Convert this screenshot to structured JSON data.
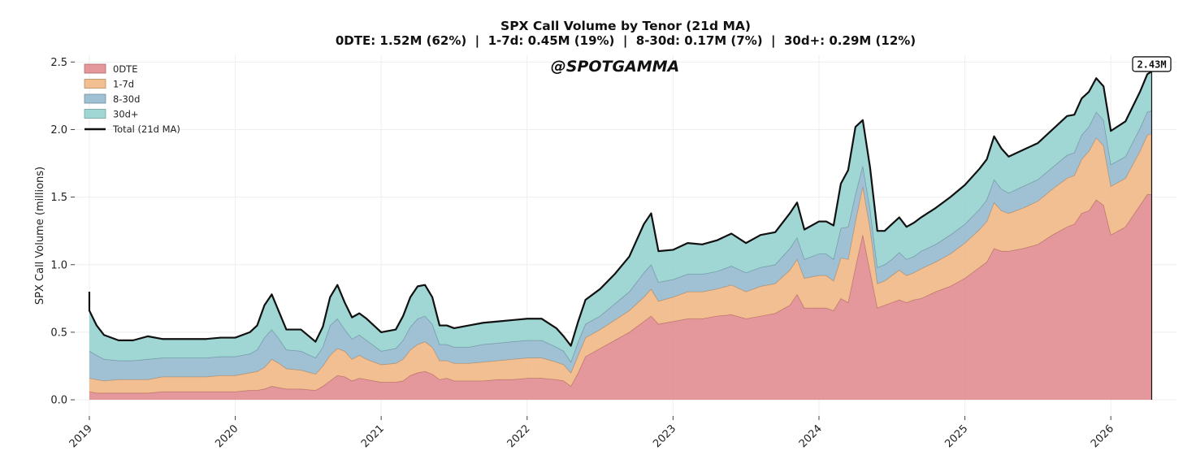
{
  "chart_data": {
    "type": "area",
    "stacked": true,
    "title": "SPX Call Volume by Tenor (21d MA)",
    "subtitle": "0DTE: 1.52M (62%)  |  1-7d: 0.45M (19%)  |  8-30d: 0.17M (7%)  |  30d+: 0.29M (12%)",
    "watermark": "@SPOTGAMMA",
    "ylabel": "SPX Call Volume (millions)",
    "xlabel": "",
    "ylim": [
      -0.12,
      2.55
    ],
    "xlim": [
      2018.9,
      2026.45
    ],
    "yticks": [
      0.0,
      0.5,
      1.0,
      1.5,
      2.0,
      2.5
    ],
    "ytick_labels": [
      "0.0",
      "0.5",
      "1.0",
      "1.5",
      "2.0",
      "2.5"
    ],
    "xticks": [
      2019,
      2020,
      2021,
      2022,
      2023,
      2024,
      2025,
      2026
    ],
    "xtick_labels": [
      "2019",
      "2020",
      "2021",
      "2022",
      "2023",
      "2024",
      "2025",
      "2026"
    ],
    "grid": true,
    "legend_position": "top-left",
    "legend": [
      "0DTE",
      "1-7d",
      "8-30d",
      "30d+",
      "Total (21d MA)"
    ],
    "last_value_label": "2.43M",
    "x": [
      2019.0,
      2019.05,
      2019.1,
      2019.2,
      2019.3,
      2019.4,
      2019.5,
      2019.6,
      2019.7,
      2019.8,
      2019.9,
      2020.0,
      2020.1,
      2020.15,
      2020.2,
      2020.25,
      2020.3,
      2020.35,
      2020.45,
      2020.55,
      2020.6,
      2020.65,
      2020.7,
      2020.75,
      2020.8,
      2020.85,
      2020.9,
      2021.0,
      2021.1,
      2021.15,
      2021.2,
      2021.25,
      2021.3,
      2021.35,
      2021.4,
      2021.45,
      2021.5,
      2021.6,
      2021.7,
      2021.8,
      2021.9,
      2022.0,
      2022.1,
      2022.2,
      2022.25,
      2022.3,
      2022.35,
      2022.4,
      2022.5,
      2022.6,
      2022.7,
      2022.8,
      2022.85,
      2022.9,
      2023.0,
      2023.1,
      2023.2,
      2023.3,
      2023.4,
      2023.5,
      2023.6,
      2023.7,
      2023.8,
      2023.85,
      2023.9,
      2024.0,
      2024.05,
      2024.1,
      2024.15,
      2024.2,
      2024.25,
      2024.3,
      2024.35,
      2024.4,
      2024.45,
      2024.5,
      2024.55,
      2024.6,
      2024.65,
      2024.7,
      2024.8,
      2024.9,
      2025.0,
      2025.1,
      2025.15,
      2025.2,
      2025.25,
      2025.3,
      2025.4,
      2025.5,
      2025.6,
      2025.7,
      2025.75,
      2025.8,
      2025.85,
      2025.9,
      2025.95,
      2026.0,
      2026.1,
      2026.2,
      2026.25,
      2026.28
    ],
    "series": [
      {
        "name": "0DTE",
        "color": "#e0868a",
        "values": [
          0.06,
          0.05,
          0.05,
          0.05,
          0.05,
          0.05,
          0.06,
          0.06,
          0.06,
          0.06,
          0.06,
          0.06,
          0.07,
          0.07,
          0.08,
          0.1,
          0.09,
          0.08,
          0.08,
          0.07,
          0.1,
          0.14,
          0.18,
          0.17,
          0.14,
          0.16,
          0.15,
          0.13,
          0.13,
          0.14,
          0.18,
          0.2,
          0.21,
          0.19,
          0.15,
          0.16,
          0.14,
          0.14,
          0.14,
          0.15,
          0.15,
          0.16,
          0.16,
          0.15,
          0.14,
          0.1,
          0.2,
          0.32,
          0.38,
          0.44,
          0.5,
          0.58,
          0.62,
          0.56,
          0.58,
          0.6,
          0.6,
          0.62,
          0.63,
          0.6,
          0.62,
          0.64,
          0.7,
          0.78,
          0.68,
          0.68,
          0.68,
          0.66,
          0.75,
          0.72,
          0.98,
          1.22,
          0.95,
          0.68,
          0.7,
          0.72,
          0.74,
          0.72,
          0.74,
          0.75,
          0.8,
          0.84,
          0.9,
          0.98,
          1.02,
          1.12,
          1.1,
          1.1,
          1.12,
          1.15,
          1.22,
          1.28,
          1.3,
          1.38,
          1.4,
          1.48,
          1.44,
          1.22,
          1.28,
          1.44,
          1.52,
          1.52
        ]
      },
      {
        "name": "1-7d",
        "color": "#efb47f",
        "values": [
          0.1,
          0.1,
          0.09,
          0.1,
          0.1,
          0.1,
          0.11,
          0.11,
          0.11,
          0.11,
          0.12,
          0.12,
          0.13,
          0.14,
          0.16,
          0.2,
          0.18,
          0.15,
          0.14,
          0.12,
          0.15,
          0.19,
          0.2,
          0.19,
          0.16,
          0.17,
          0.15,
          0.13,
          0.14,
          0.16,
          0.19,
          0.21,
          0.22,
          0.2,
          0.14,
          0.13,
          0.13,
          0.13,
          0.14,
          0.14,
          0.15,
          0.15,
          0.15,
          0.13,
          0.12,
          0.1,
          0.13,
          0.14,
          0.14,
          0.15,
          0.16,
          0.18,
          0.2,
          0.17,
          0.18,
          0.2,
          0.2,
          0.2,
          0.22,
          0.2,
          0.22,
          0.22,
          0.26,
          0.26,
          0.22,
          0.24,
          0.24,
          0.22,
          0.3,
          0.32,
          0.34,
          0.36,
          0.32,
          0.18,
          0.18,
          0.2,
          0.22,
          0.2,
          0.2,
          0.22,
          0.22,
          0.24,
          0.26,
          0.28,
          0.3,
          0.34,
          0.3,
          0.28,
          0.3,
          0.32,
          0.34,
          0.36,
          0.36,
          0.4,
          0.44,
          0.46,
          0.44,
          0.36,
          0.36,
          0.4,
          0.44,
          0.45
        ]
      },
      {
        "name": "8-30d",
        "color": "#8fb6cc",
        "values": [
          0.2,
          0.18,
          0.16,
          0.14,
          0.14,
          0.15,
          0.14,
          0.14,
          0.14,
          0.14,
          0.14,
          0.14,
          0.14,
          0.16,
          0.22,
          0.22,
          0.18,
          0.14,
          0.14,
          0.12,
          0.14,
          0.22,
          0.22,
          0.16,
          0.15,
          0.15,
          0.14,
          0.1,
          0.11,
          0.14,
          0.17,
          0.19,
          0.19,
          0.17,
          0.12,
          0.12,
          0.12,
          0.12,
          0.13,
          0.13,
          0.13,
          0.13,
          0.13,
          0.11,
          0.1,
          0.08,
          0.1,
          0.1,
          0.1,
          0.12,
          0.14,
          0.18,
          0.18,
          0.14,
          0.13,
          0.13,
          0.13,
          0.13,
          0.14,
          0.14,
          0.14,
          0.14,
          0.16,
          0.16,
          0.14,
          0.16,
          0.16,
          0.16,
          0.22,
          0.24,
          0.2,
          0.15,
          0.14,
          0.12,
          0.12,
          0.12,
          0.13,
          0.12,
          0.12,
          0.13,
          0.13,
          0.14,
          0.14,
          0.15,
          0.16,
          0.17,
          0.16,
          0.15,
          0.16,
          0.16,
          0.16,
          0.17,
          0.17,
          0.18,
          0.18,
          0.19,
          0.19,
          0.16,
          0.16,
          0.17,
          0.17,
          0.17
        ]
      },
      {
        "name": "30d+",
        "color": "#8fd0cc",
        "values": [
          0.3,
          0.22,
          0.18,
          0.15,
          0.15,
          0.17,
          0.14,
          0.14,
          0.14,
          0.14,
          0.14,
          0.14,
          0.16,
          0.18,
          0.24,
          0.26,
          0.2,
          0.15,
          0.16,
          0.12,
          0.15,
          0.21,
          0.25,
          0.2,
          0.16,
          0.16,
          0.16,
          0.14,
          0.14,
          0.18,
          0.22,
          0.24,
          0.23,
          0.2,
          0.14,
          0.14,
          0.14,
          0.16,
          0.16,
          0.16,
          0.16,
          0.16,
          0.16,
          0.14,
          0.11,
          0.12,
          0.15,
          0.18,
          0.2,
          0.22,
          0.26,
          0.36,
          0.38,
          0.23,
          0.22,
          0.23,
          0.22,
          0.23,
          0.24,
          0.22,
          0.24,
          0.24,
          0.26,
          0.26,
          0.22,
          0.24,
          0.24,
          0.25,
          0.33,
          0.42,
          0.5,
          0.34,
          0.31,
          0.27,
          0.25,
          0.26,
          0.26,
          0.24,
          0.25,
          0.25,
          0.27,
          0.28,
          0.29,
          0.3,
          0.3,
          0.32,
          0.3,
          0.27,
          0.27,
          0.27,
          0.28,
          0.29,
          0.28,
          0.27,
          0.26,
          0.25,
          0.25,
          0.25,
          0.26,
          0.27,
          0.28,
          0.29
        ]
      }
    ]
  }
}
